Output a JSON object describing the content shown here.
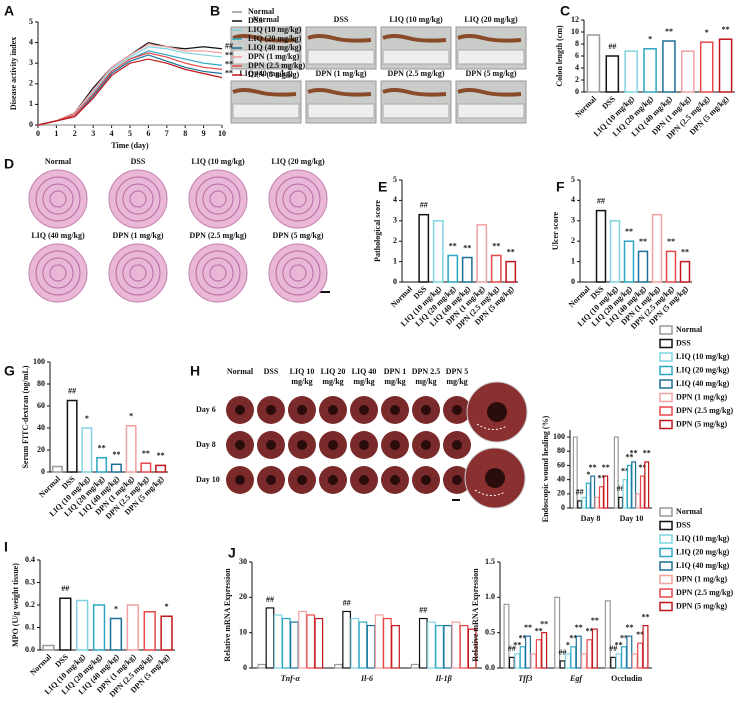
{
  "figure": {
    "B": {
      "label": "B",
      "captions": [
        "Normal",
        "DSS",
        "LIQ (10 mg/kg)",
        "LIQ (20 mg/kg)",
        "LIQ (40 mg/kg)",
        "DPN (1 mg/kg)",
        "DPN (2.5 mg/kg)",
        "DPN (5 mg/kg)"
      ]
    },
    "D": {
      "label": "D",
      "captions": [
        "Normal",
        "DSS",
        "LIQ (10 mg/kg)",
        "LIQ (20 mg/kg)",
        "LIQ (40 mg/kg)",
        "DPN (1 mg/kg)",
        "DPN (2.5 mg/kg)",
        "DPN (5 mg/kg)"
      ]
    },
    "H": {
      "label": "H",
      "columns": [
        [
          "Normal"
        ],
        [
          "DSS"
        ],
        [
          "LIQ 10",
          "mg/kg"
        ],
        [
          "LIQ 20",
          "mg/kg"
        ],
        [
          "LIQ 40",
          "mg/kg"
        ],
        [
          "DPN 1",
          "mg/kg"
        ],
        [
          "DPN 2.5",
          "mg/kg"
        ],
        [
          "DPN 5",
          "mg/kg"
        ]
      ],
      "rows": [
        "Day 6",
        "Day 8",
        "Day 10"
      ]
    }
  },
  "chart_data": [
    {
      "type": "line",
      "label": "A",
      "xlabel": "Time (day)",
      "ylabel": "Disease activity index",
      "x": [
        0,
        1,
        2,
        3,
        4,
        5,
        6,
        7,
        8,
        9,
        10
      ],
      "xlim": [
        0,
        10
      ],
      "xticks": [
        0,
        1,
        2,
        3,
        4,
        5,
        6,
        7,
        8,
        9,
        10
      ],
      "ylim": [
        0,
        5
      ],
      "yticks": [
        0,
        1,
        2,
        3,
        4,
        5
      ],
      "annotations": [
        "##",
        "**",
        "**",
        "**"
      ],
      "series": [
        {
          "name": "Normal",
          "color": "#999999",
          "values": [
            0,
            0,
            0,
            0,
            0,
            0,
            0,
            0,
            0,
            0,
            0
          ]
        },
        {
          "name": "DSS",
          "color": "#111111",
          "values": [
            0,
            0.2,
            0.6,
            1.8,
            2.8,
            3.4,
            4.0,
            3.8,
            3.7,
            3.8,
            3.7
          ]
        },
        {
          "name": "LIQ (10 mg/kg)",
          "color": "#7fd3e0",
          "values": [
            0,
            0.2,
            0.5,
            1.6,
            2.7,
            3.3,
            3.8,
            3.7,
            3.5,
            3.4,
            3.3
          ]
        },
        {
          "name": "LIQ (20 mg/kg)",
          "color": "#2aa6c4",
          "values": [
            0,
            0.2,
            0.5,
            1.5,
            2.6,
            3.2,
            3.6,
            3.4,
            3.2,
            3.0,
            2.9
          ]
        },
        {
          "name": "LIQ (40 mg/kg)",
          "color": "#1b6f96",
          "values": [
            0,
            0.2,
            0.4,
            1.4,
            2.5,
            3.1,
            3.4,
            3.1,
            2.8,
            2.6,
            2.5
          ]
        },
        {
          "name": "DPN (1 mg/kg)",
          "color": "#f2a0a0",
          "values": [
            0,
            0.2,
            0.6,
            1.7,
            2.8,
            3.4,
            3.9,
            3.8,
            3.6,
            3.6,
            3.5
          ]
        },
        {
          "name": "DPN (2.5 mg/kg)",
          "color": "#e8474a",
          "values": [
            0,
            0.2,
            0.5,
            1.5,
            2.6,
            3.2,
            3.5,
            3.3,
            3.0,
            2.8,
            2.7
          ]
        },
        {
          "name": "DPN (5 mg/kg)",
          "color": "#c0151b",
          "values": [
            0,
            0.2,
            0.4,
            1.3,
            2.4,
            3.0,
            3.2,
            3.0,
            2.7,
            2.5,
            2.3
          ]
        }
      ]
    },
    {
      "type": "bar",
      "label": "C",
      "ylabel": "Colon length (cm)",
      "ylim": [
        0,
        12
      ],
      "yticks": [
        0,
        2,
        4,
        6,
        8,
        10,
        12
      ],
      "categories": [
        "Normal",
        "DSS",
        "LIQ (10 mg/kg)",
        "LIQ (20 mg/kg)",
        "LIQ (40 mg/kg)",
        "DPN (1 mg/kg)",
        "DPN (2.5 mg/kg)",
        "DPN (5 mg/kg)"
      ],
      "values": [
        9.5,
        6.0,
        6.8,
        7.2,
        8.5,
        6.8,
        8.3,
        8.8
      ],
      "sig": [
        null,
        "##",
        null,
        "*",
        "**",
        null,
        "*",
        "**"
      ],
      "colors": [
        "#999999",
        "#111111",
        "#7fd3e0",
        "#2aa6c4",
        "#1b6f96",
        "#f2a0a0",
        "#e8474a",
        "#c0151b"
      ]
    },
    {
      "type": "bar",
      "label": "E",
      "ylabel": "Pathological score",
      "ylim": [
        0,
        5
      ],
      "yticks": [
        0,
        1,
        2,
        3,
        4,
        5
      ],
      "categories": [
        "Normal",
        "DSS",
        "LIQ (10 mg/kg)",
        "LIQ (20 mg/kg)",
        "LIQ (40 mg/kg)",
        "DPN (1 mg/kg)",
        "DPN (2.5 mg/kg)",
        "DPN (5 mg/kg)"
      ],
      "values": [
        0,
        3.3,
        3.0,
        1.3,
        1.2,
        2.8,
        1.3,
        1.0
      ],
      "sig": [
        null,
        "##",
        null,
        "**",
        "**",
        null,
        "**",
        "**"
      ],
      "colors": [
        "#999999",
        "#111111",
        "#7fd3e0",
        "#2aa6c4",
        "#1b6f96",
        "#f2a0a0",
        "#e8474a",
        "#c0151b"
      ]
    },
    {
      "type": "bar",
      "label": "F",
      "ylabel": "Ulcer score",
      "ylim": [
        0,
        5
      ],
      "yticks": [
        0,
        1,
        2,
        3,
        4,
        5
      ],
      "categories": [
        "Normal",
        "DSS",
        "LIQ (10 mg/kg)",
        "LIQ (20 mg/kg)",
        "LIQ (40 mg/kg)",
        "DPN (1 mg/kg)",
        "DPN (2.5 mg/kg)",
        "DPN (5 mg/kg)"
      ],
      "values": [
        0,
        3.5,
        3.0,
        2.0,
        1.5,
        3.3,
        1.5,
        1.0
      ],
      "sig": [
        null,
        "##",
        null,
        "**",
        "**",
        null,
        "**",
        "**"
      ],
      "colors": [
        "#999999",
        "#111111",
        "#7fd3e0",
        "#2aa6c4",
        "#1b6f96",
        "#f2a0a0",
        "#e8474a",
        "#c0151b"
      ]
    },
    {
      "type": "bar",
      "label": "G",
      "ylabel": "Serum FITC-dextran (ng/mL)",
      "ylim": [
        0,
        100
      ],
      "yticks": [
        0,
        20,
        40,
        60,
        80,
        100
      ],
      "categories": [
        "Normal",
        "DSS",
        "LIQ (10 mg/kg)",
        "LIQ (20 mg/kg)",
        "LIQ (40 mg/kg)",
        "DPN (1 mg/kg)",
        "DPN (2.5 mg/kg)",
        "DPN (5 mg/kg)"
      ],
      "values": [
        5,
        65,
        40,
        13,
        7,
        42,
        8,
        6
      ],
      "sig": [
        null,
        "##",
        "*",
        "**",
        "**",
        "*",
        "**",
        "**"
      ],
      "colors": [
        "#999999",
        "#111111",
        "#7fd3e0",
        "#2aa6c4",
        "#1b6f96",
        "#f2a0a0",
        "#e8474a",
        "#c0151b"
      ]
    },
    {
      "type": "grouped_bar",
      "ylabel": "Endoscopic wound healing (%)",
      "ylim": [
        0,
        110
      ],
      "yticks": [
        0,
        20,
        40,
        60,
        80,
        100
      ],
      "categories": [
        "Day 8",
        "Day 10"
      ],
      "series": [
        {
          "name": "Normal",
          "color": "#999999",
          "values": [
            100,
            100
          ],
          "sig": [
            null,
            null
          ]
        },
        {
          "name": "DSS",
          "color": "#111111",
          "values": [
            10,
            15
          ],
          "sig": [
            "##",
            "##"
          ]
        },
        {
          "name": "LIQ (10 mg/kg)",
          "color": "#7fd3e0",
          "values": [
            15,
            40
          ],
          "sig": [
            null,
            "**"
          ]
        },
        {
          "name": "LIQ (20 mg/kg)",
          "color": "#2aa6c4",
          "values": [
            35,
            60
          ],
          "sig": [
            "*",
            "**"
          ]
        },
        {
          "name": "LIQ (40 mg/kg)",
          "color": "#1b6f96",
          "values": [
            45,
            65
          ],
          "sig": [
            "**",
            "**"
          ]
        },
        {
          "name": "DPN (1 mg/kg)",
          "color": "#f2a0a0",
          "values": [
            15,
            20
          ],
          "sig": [
            null,
            null
          ]
        },
        {
          "name": "DPN (2.5 mg/kg)",
          "color": "#e8474a",
          "values": [
            30,
            45
          ],
          "sig": [
            "**",
            "**"
          ]
        },
        {
          "name": "DPN (5 mg/kg)",
          "color": "#c0151b",
          "values": [
            45,
            65
          ],
          "sig": [
            "**",
            "**"
          ]
        }
      ]
    },
    {
      "type": "bar",
      "label": "I",
      "ylabel": "MPO (U/g weight tissue)",
      "ylim": [
        0,
        0.4
      ],
      "yticks": [
        {
          "value": 0,
          "label": "0.0"
        },
        0.1,
        0.2,
        0.3,
        0.4
      ],
      "categories": [
        "Normal",
        "DSS",
        "LIQ (10 mg/kg)",
        "LIQ (20 mg/kg)",
        "LIQ (40 mg/kg)",
        "DPN (1 mg/kg)",
        "DPN (2.5 mg/kg)",
        "DPN (5 mg/kg)"
      ],
      "values": [
        0.02,
        0.23,
        0.22,
        0.2,
        0.14,
        0.2,
        0.17,
        0.15
      ],
      "sig": [
        null,
        "##",
        null,
        null,
        "*",
        null,
        null,
        "*"
      ],
      "colors": [
        "#999999",
        "#111111",
        "#7fd3e0",
        "#2aa6c4",
        "#1b6f96",
        "#f2a0a0",
        "#e8474a",
        "#c0151b"
      ]
    },
    {
      "type": "grouped_bar",
      "label": "J",
      "ylabel": "Relative mRNA Expression",
      "ylim": [
        0,
        30
      ],
      "yticks": [
        0,
        10,
        20,
        30
      ],
      "categories": [
        "Tnf-α",
        "Il-6",
        "Il-1β"
      ],
      "series": [
        {
          "name": "Normal",
          "color": "#999999",
          "values": [
            1,
            1,
            1
          ],
          "sig": [
            null,
            null,
            null
          ]
        },
        {
          "name": "DSS",
          "color": "#111111",
          "values": [
            17,
            16,
            14
          ],
          "sig": [
            "##",
            "##",
            "##"
          ]
        },
        {
          "name": "LIQ (10 mg/kg)",
          "color": "#7fd3e0",
          "values": [
            15,
            14,
            13
          ],
          "sig": [
            null,
            null,
            null
          ]
        },
        {
          "name": "LIQ (20 mg/kg)",
          "color": "#2aa6c4",
          "values": [
            14,
            13,
            12
          ],
          "sig": [
            null,
            null,
            null
          ]
        },
        {
          "name": "LIQ (40 mg/kg)",
          "color": "#1b6f96",
          "values": [
            13,
            12,
            12
          ],
          "sig": [
            null,
            null,
            null
          ]
        },
        {
          "name": "DPN (1 mg/kg)",
          "color": "#f2a0a0",
          "values": [
            16,
            15,
            13
          ],
          "sig": [
            null,
            null,
            null
          ]
        },
        {
          "name": "DPN (2.5 mg/kg)",
          "color": "#e8474a",
          "values": [
            15,
            14,
            12
          ],
          "sig": [
            null,
            null,
            null
          ]
        },
        {
          "name": "DPN (5 mg/kg)",
          "color": "#c0151b",
          "values": [
            14,
            12,
            11
          ],
          "sig": [
            null,
            null,
            null
          ]
        }
      ]
    },
    {
      "type": "grouped_bar",
      "ylabel": "Relative mRNA Expression",
      "ylim": [
        0,
        1.5
      ],
      "yticks": [
        {
          "value": 0,
          "label": "0.0"
        },
        0.5,
        {
          "value": 1,
          "label": "1.0"
        },
        1.5
      ],
      "categories": [
        "Tff3",
        "Egf",
        "Occludin"
      ],
      "series": [
        {
          "name": "Normal",
          "color": "#999999",
          "values": [
            0.9,
            1.0,
            0.95
          ],
          "sig": [
            null,
            null,
            null
          ]
        },
        {
          "name": "DSS",
          "color": "#111111",
          "values": [
            0.15,
            0.1,
            0.15
          ],
          "sig": [
            "##",
            "##",
            "##"
          ]
        },
        {
          "name": "LIQ (10 mg/kg)",
          "color": "#7fd3e0",
          "values": [
            0.2,
            0.2,
            0.2
          ],
          "sig": [
            "**",
            "*",
            "**"
          ]
        },
        {
          "name": "LIQ (20 mg/kg)",
          "color": "#2aa6c4",
          "values": [
            0.3,
            0.3,
            0.3
          ],
          "sig": [
            "**",
            "**",
            "**"
          ]
        },
        {
          "name": "LIQ (40 mg/kg)",
          "color": "#1b6f96",
          "values": [
            0.45,
            0.45,
            0.45
          ],
          "sig": [
            "**",
            "**",
            "**"
          ]
        },
        {
          "name": "DPN (1 mg/kg)",
          "color": "#f2a0a0",
          "values": [
            0.2,
            0.2,
            0.2
          ],
          "sig": [
            null,
            null,
            null
          ]
        },
        {
          "name": "DPN (2.5 mg/kg)",
          "color": "#e8474a",
          "values": [
            0.4,
            0.4,
            0.35
          ],
          "sig": [
            "**",
            "**",
            "**"
          ]
        },
        {
          "name": "DPN (5 mg/kg)",
          "color": "#c0151b",
          "values": [
            0.5,
            0.55,
            0.6
          ],
          "sig": [
            "**",
            "**",
            "**"
          ]
        }
      ]
    }
  ]
}
